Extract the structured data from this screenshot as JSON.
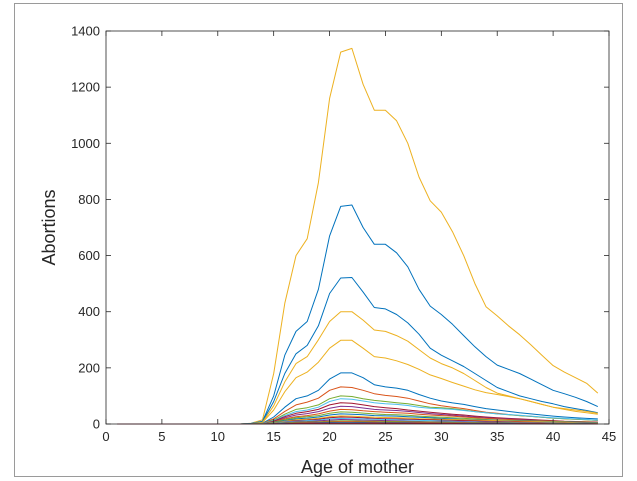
{
  "chart_data": {
    "type": "line",
    "title": "",
    "xlabel": "Age of mother",
    "ylabel": "Abortions",
    "xlim": [
      0,
      45
    ],
    "ylim": [
      0,
      1400
    ],
    "xticks": [
      0,
      5,
      10,
      15,
      20,
      25,
      30,
      35,
      40,
      45
    ],
    "yticks": [
      0,
      200,
      400,
      600,
      800,
      1000,
      1200,
      1400
    ],
    "grid": false,
    "legend": "none",
    "x": [
      1,
      2,
      3,
      4,
      5,
      6,
      7,
      8,
      9,
      10,
      11,
      12,
      13,
      14,
      15,
      16,
      17,
      18,
      19,
      20,
      21,
      22,
      23,
      24,
      25,
      26,
      27,
      28,
      29,
      30,
      31,
      32,
      33,
      34,
      35,
      36,
      37,
      38,
      39,
      40,
      41,
      42,
      43,
      44
    ],
    "series": [
      {
        "color": "#EDB120",
        "values": [
          0,
          0,
          0,
          0,
          0,
          0,
          0,
          0,
          0,
          0,
          0,
          0,
          3,
          15,
          180,
          430,
          600,
          660,
          860,
          1160,
          1325,
          1338,
          1210,
          1118,
          1118,
          1080,
          1000,
          880,
          795,
          755,
          685,
          600,
          500,
          418,
          385,
          350,
          318,
          282,
          245,
          208,
          185,
          165,
          145,
          110
        ]
      },
      {
        "color": "#0072BD",
        "values": [
          0,
          0,
          0,
          0,
          0,
          0,
          0,
          0,
          0,
          0,
          0,
          0,
          2,
          10,
          100,
          245,
          330,
          365,
          480,
          670,
          775,
          780,
          700,
          640,
          640,
          610,
          560,
          480,
          420,
          390,
          355,
          315,
          275,
          240,
          210,
          195,
          180,
          160,
          140,
          120,
          108,
          95,
          80,
          62
        ]
      },
      {
        "color": "#0072BD",
        "values": [
          0,
          0,
          0,
          0,
          0,
          0,
          0,
          0,
          0,
          0,
          0,
          0,
          2,
          8,
          80,
          180,
          250,
          280,
          350,
          465,
          520,
          522,
          470,
          415,
          410,
          390,
          360,
          320,
          270,
          245,
          225,
          205,
          180,
          155,
          130,
          115,
          100,
          90,
          80,
          72,
          62,
          55,
          48,
          40
        ]
      },
      {
        "color": "#EDB120",
        "values": [
          0,
          0,
          0,
          0,
          0,
          0,
          0,
          0,
          0,
          0,
          0,
          0,
          1,
          6,
          65,
          150,
          215,
          240,
          300,
          365,
          400,
          400,
          370,
          335,
          330,
          315,
          295,
          265,
          235,
          215,
          200,
          180,
          155,
          130,
          110,
          100,
          90,
          80,
          70,
          60,
          52,
          45,
          40,
          35
        ]
      },
      {
        "color": "#EDB120",
        "values": [
          0,
          0,
          0,
          0,
          0,
          0,
          0,
          0,
          0,
          0,
          0,
          0,
          1,
          5,
          50,
          115,
          165,
          185,
          220,
          270,
          298,
          298,
          270,
          240,
          235,
          225,
          212,
          195,
          175,
          162,
          148,
          135,
          122,
          112,
          105,
          98,
          90,
          80,
          70,
          60,
          55,
          50,
          45,
          38
        ]
      },
      {
        "color": "#0072BD",
        "values": [
          0,
          0,
          0,
          0,
          0,
          0,
          0,
          0,
          0,
          0,
          0,
          0,
          1,
          3,
          25,
          60,
          90,
          100,
          120,
          160,
          182,
          182,
          165,
          140,
          132,
          128,
          120,
          105,
          92,
          82,
          75,
          70,
          62,
          55,
          50,
          45,
          40,
          36,
          32,
          28,
          25,
          22,
          20,
          18
        ]
      },
      {
        "color": "#D95319",
        "values": [
          0,
          0,
          0,
          0,
          0,
          0,
          0,
          0,
          0,
          0,
          0,
          0,
          0,
          2,
          18,
          45,
          68,
          78,
          92,
          120,
          132,
          130,
          120,
          108,
          102,
          98,
          92,
          82,
          72,
          65,
          60,
          55,
          48,
          42,
          38,
          34,
          30,
          27,
          24,
          21,
          19,
          17,
          15,
          13
        ]
      },
      {
        "color": "#77AC30",
        "values": [
          0,
          0,
          0,
          0,
          0,
          0,
          0,
          0,
          0,
          0,
          0,
          0,
          0,
          2,
          14,
          35,
          52,
          58,
          68,
          90,
          100,
          98,
          90,
          84,
          80,
          76,
          72,
          66,
          60,
          58,
          55,
          50,
          44,
          40,
          36,
          33,
          30,
          27,
          24,
          21,
          19,
          17,
          15,
          13
        ]
      },
      {
        "color": "#4DBEEE",
        "values": [
          0,
          0,
          0,
          0,
          0,
          0,
          0,
          0,
          0,
          0,
          0,
          0,
          0,
          2,
          12,
          30,
          44,
          50,
          60,
          80,
          90,
          88,
          82,
          76,
          72,
          70,
          66,
          60,
          56,
          54,
          52,
          48,
          44,
          40,
          36,
          34,
          31,
          28,
          25,
          22,
          20,
          18,
          16,
          14
        ]
      },
      {
        "color": "#A2142F",
        "values": [
          0,
          0,
          0,
          0,
          0,
          0,
          0,
          0,
          0,
          0,
          0,
          0,
          0,
          1,
          10,
          26,
          38,
          44,
          52,
          68,
          76,
          74,
          68,
          62,
          58,
          55,
          50,
          46,
          42,
          38,
          35,
          32,
          28,
          25,
          22,
          20,
          18,
          16,
          14,
          12,
          10,
          9,
          8,
          7
        ]
      },
      {
        "color": "#7E2F8E",
        "values": [
          0,
          0,
          0,
          0,
          0,
          0,
          0,
          0,
          0,
          0,
          0,
          0,
          0,
          1,
          8,
          22,
          32,
          37,
          44,
          56,
          63,
          62,
          57,
          52,
          50,
          48,
          45,
          41,
          37,
          34,
          31,
          28,
          25,
          22,
          20,
          18,
          16,
          14,
          12,
          10,
          9,
          8,
          7,
          6
        ]
      },
      {
        "color": "#D95319",
        "values": [
          0,
          0,
          0,
          0,
          0,
          0,
          0,
          0,
          0,
          0,
          0,
          0,
          0,
          1,
          7,
          18,
          26,
          30,
          36,
          46,
          52,
          51,
          47,
          44,
          42,
          40,
          38,
          35,
          32,
          30,
          28,
          25,
          22,
          20,
          18,
          16,
          14,
          12,
          11,
          10,
          9,
          8,
          7,
          6
        ]
      },
      {
        "color": "#77AC30",
        "values": [
          0,
          0,
          0,
          0,
          0,
          0,
          0,
          0,
          0,
          0,
          0,
          0,
          0,
          1,
          6,
          15,
          22,
          26,
          30,
          38,
          43,
          42,
          39,
          36,
          34,
          33,
          31,
          28,
          26,
          24,
          22,
          20,
          18,
          16,
          14,
          13,
          12,
          11,
          10,
          9,
          8,
          7,
          6,
          5
        ]
      },
      {
        "color": "#0072BD",
        "values": [
          0,
          0,
          0,
          0,
          0,
          0,
          0,
          0,
          0,
          0,
          0,
          0,
          0,
          1,
          5,
          12,
          18,
          21,
          25,
          32,
          36,
          35,
          33,
          30,
          29,
          28,
          26,
          24,
          22,
          20,
          18,
          16,
          15,
          14,
          13,
          12,
          11,
          10,
          9,
          8,
          7,
          6,
          5,
          4
        ]
      },
      {
        "color": "#EDB120",
        "values": [
          0,
          0,
          0,
          0,
          0,
          0,
          0,
          0,
          0,
          0,
          0,
          0,
          0,
          1,
          4,
          10,
          15,
          17,
          20,
          26,
          29,
          28,
          26,
          24,
          23,
          22,
          21,
          19,
          18,
          17,
          16,
          15,
          14,
          13,
          12,
          11,
          10,
          9,
          8,
          7,
          6,
          5,
          4,
          3
        ]
      },
      {
        "color": "#A2142F",
        "values": [
          0,
          0,
          0,
          0,
          0,
          0,
          0,
          0,
          0,
          0,
          0,
          0,
          0,
          0,
          3,
          8,
          12,
          14,
          17,
          22,
          25,
          24,
          22,
          20,
          19,
          18,
          17,
          16,
          15,
          14,
          13,
          12,
          11,
          10,
          9,
          8,
          7,
          6,
          5,
          4,
          4,
          3,
          3,
          2
        ]
      },
      {
        "color": "#4DBEEE",
        "values": [
          0,
          0,
          0,
          0,
          0,
          0,
          0,
          0,
          0,
          0,
          0,
          0,
          0,
          0,
          3,
          7,
          10,
          12,
          14,
          18,
          20,
          19,
          18,
          17,
          16,
          15,
          14,
          13,
          12,
          11,
          10,
          9,
          8,
          7,
          6,
          6,
          5,
          5,
          4,
          4,
          3,
          3,
          2,
          2
        ]
      },
      {
        "color": "#7E2F8E",
        "values": [
          0,
          0,
          0,
          0,
          0,
          0,
          0,
          0,
          0,
          0,
          0,
          0,
          0,
          0,
          2,
          5,
          8,
          9,
          11,
          14,
          16,
          15,
          14,
          13,
          12,
          11,
          10,
          9,
          8,
          8,
          7,
          7,
          6,
          6,
          5,
          5,
          4,
          4,
          3,
          3,
          2,
          2,
          2,
          1
        ]
      },
      {
        "color": "#77AC30",
        "values": [
          0,
          0,
          0,
          0,
          0,
          0,
          0,
          0,
          0,
          0,
          0,
          0,
          0,
          0,
          2,
          4,
          6,
          7,
          8,
          10,
          11,
          11,
          10,
          10,
          9,
          9,
          8,
          7,
          7,
          6,
          6,
          5,
          5,
          4,
          4,
          4,
          3,
          3,
          3,
          2,
          2,
          2,
          1,
          1
        ]
      },
      {
        "color": "#D95319",
        "values": [
          0,
          0,
          0,
          0,
          0,
          0,
          0,
          0,
          0,
          0,
          0,
          0,
          0,
          0,
          1,
          3,
          4,
          5,
          6,
          7,
          8,
          8,
          7,
          7,
          6,
          6,
          6,
          5,
          5,
          4,
          4,
          4,
          3,
          3,
          3,
          2,
          2,
          2,
          2,
          1,
          1,
          1,
          1,
          1
        ]
      },
      {
        "color": "#0072BD",
        "values": [
          0,
          0,
          0,
          0,
          0,
          0,
          0,
          0,
          0,
          0,
          0,
          0,
          0,
          0,
          1,
          2,
          3,
          3,
          4,
          5,
          5,
          5,
          5,
          4,
          4,
          4,
          4,
          3,
          3,
          3,
          3,
          2,
          2,
          2,
          2,
          2,
          1,
          1,
          1,
          1,
          1,
          1,
          1,
          0
        ]
      },
      {
        "color": "#A2142F",
        "values": [
          0,
          0,
          0,
          0,
          0,
          0,
          0,
          0,
          0,
          0,
          0,
          0,
          0,
          0,
          1,
          1,
          2,
          2,
          2,
          3,
          3,
          3,
          3,
          3,
          2,
          2,
          2,
          2,
          2,
          2,
          2,
          1,
          1,
          1,
          1,
          1,
          1,
          1,
          1,
          0,
          0,
          0,
          0,
          0
        ]
      }
    ]
  }
}
